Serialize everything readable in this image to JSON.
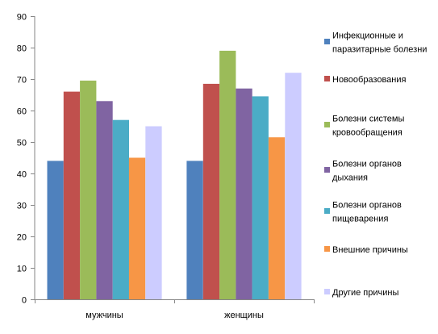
{
  "chart_data": {
    "type": "bar",
    "title": "",
    "xlabel": "",
    "ylabel": "",
    "ylim": [
      0,
      90
    ],
    "yticks": [
      0,
      10,
      20,
      30,
      40,
      50,
      60,
      70,
      80,
      90
    ],
    "grid": false,
    "legend_position": "right",
    "categories": [
      "мужчины",
      "женщины"
    ],
    "series": [
      {
        "name": "Инфекционные и паразитарные болезни",
        "values": [
          44,
          44
        ],
        "color": "#4F81BD"
      },
      {
        "name": "Новообразования",
        "values": [
          66,
          68.5
        ],
        "color": "#C0504D"
      },
      {
        "name": "Болезни системы кровообращения",
        "values": [
          69.5,
          79
        ],
        "color": "#9BBB59"
      },
      {
        "name": "Болезни органов дыхания",
        "values": [
          63,
          67
        ],
        "color": "#8064A2"
      },
      {
        "name": "Болезни органов пищеварения",
        "values": [
          57,
          64.5
        ],
        "color": "#4BACC6"
      },
      {
        "name": "Внешние причины",
        "values": [
          45,
          51.5
        ],
        "color": "#F79646"
      },
      {
        "name": "Другие причины",
        "values": [
          55,
          72
        ],
        "color": "#CCCCFF"
      }
    ]
  }
}
